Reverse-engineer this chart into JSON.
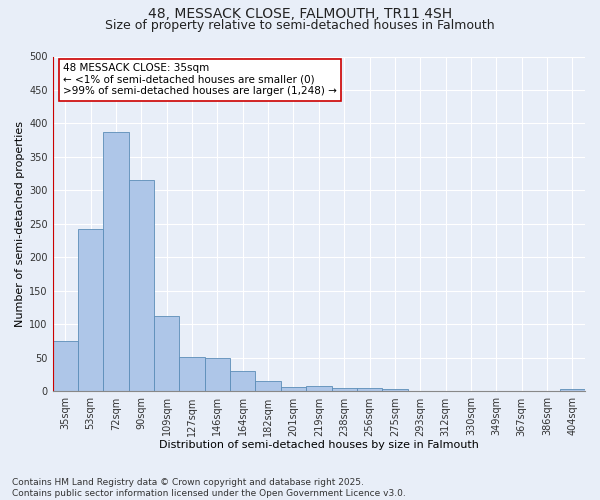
{
  "title1": "48, MESSACK CLOSE, FALMOUTH, TR11 4SH",
  "title2": "Size of property relative to semi-detached houses in Falmouth",
  "xlabel": "Distribution of semi-detached houses by size in Falmouth",
  "ylabel": "Number of semi-detached properties",
  "categories": [
    "35sqm",
    "53sqm",
    "72sqm",
    "90sqm",
    "109sqm",
    "127sqm",
    "146sqm",
    "164sqm",
    "182sqm",
    "201sqm",
    "219sqm",
    "238sqm",
    "256sqm",
    "275sqm",
    "293sqm",
    "312sqm",
    "330sqm",
    "349sqm",
    "367sqm",
    "386sqm",
    "404sqm"
  ],
  "values": [
    75,
    243,
    387,
    315,
    113,
    51,
    50,
    30,
    15,
    7,
    8,
    5,
    5,
    3,
    1,
    1,
    0,
    0,
    0,
    1,
    4
  ],
  "bar_color": "#aec6e8",
  "bar_edge_color": "#5b8db8",
  "highlight_line_color": "#cc0000",
  "annotation_text": "48 MESSACK CLOSE: 35sqm\n← <1% of semi-detached houses are smaller (0)\n>99% of semi-detached houses are larger (1,248) →",
  "annotation_box_color": "#ffffff",
  "annotation_box_edge_color": "#cc0000",
  "ylim": [
    0,
    500
  ],
  "yticks": [
    0,
    50,
    100,
    150,
    200,
    250,
    300,
    350,
    400,
    450,
    500
  ],
  "footnote": "Contains HM Land Registry data © Crown copyright and database right 2025.\nContains public sector information licensed under the Open Government Licence v3.0.",
  "background_color": "#e8eef8",
  "title1_fontsize": 10,
  "title2_fontsize": 9,
  "xlabel_fontsize": 8,
  "ylabel_fontsize": 8,
  "tick_fontsize": 7,
  "annotation_fontsize": 7.5,
  "footnote_fontsize": 6.5
}
